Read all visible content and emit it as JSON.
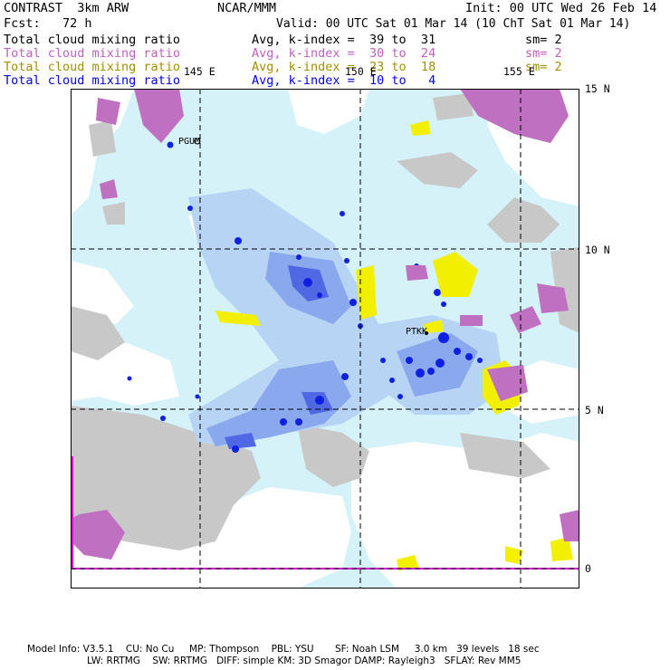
{
  "header": {
    "title": "CONTRAST  3km ARW",
    "center": "NCAR/MMM",
    "init": "Init: 00 UTC Wed 26 Feb 14",
    "fcst": "Fcst:   72 h",
    "valid": "Valid: 00 UTC Sat 01 Mar 14 (10 ChT Sat 01 Mar 14)"
  },
  "fields": [
    {
      "name": "Total cloud mixing ratio",
      "range": "Avg, k-index =  39 to  31",
      "sm": "sm= 2",
      "color": "#000000"
    },
    {
      "name": "Total cloud mixing ratio",
      "range": "Avg, k-index =  30 to  24",
      "sm": "sm= 2",
      "color": "#c060c0"
    },
    {
      "name": "Total cloud mixing ratio",
      "range": "Avg, k-index =  23 to  18",
      "sm": "sm= 2",
      "color": "#a09000"
    },
    {
      "name": "Total cloud mixing ratio",
      "range": "Avg, k-index =  10 to   4",
      "sm": "",
      "color": "#0000e0"
    }
  ],
  "map": {
    "lon_labels": [
      "145 E",
      "150 E",
      "155 E"
    ],
    "lat_labels": [
      "15 N",
      "10 N",
      "5 N",
      "0"
    ],
    "stations": [
      "PGUM",
      "PTKK"
    ],
    "colors": {
      "ocean": "#d4f2f8",
      "clear": "#ffffff",
      "low_cloud": "#c8c8c8",
      "k30": "#c070c0",
      "k23": "#f2f000",
      "k10": "#1020e0",
      "blue_light": "#b8d4f4",
      "blue_mid": "#8aa8ee",
      "blue_dark": "#5068e4",
      "boundary": "#e000e0"
    }
  },
  "footer": {
    "line1": "Model Info: V3.5.1    CU: No Cu     MP: Thompson    PBL: YSU       SF: Noah LSM     3.0 km   39 levels   18 sec",
    "line2": "LW: RRTMG    SW: RRTMG   DIFF: simple KM: 3D Smagor DAMP: Rayleigh3   SFLAY: Rev MM5"
  }
}
